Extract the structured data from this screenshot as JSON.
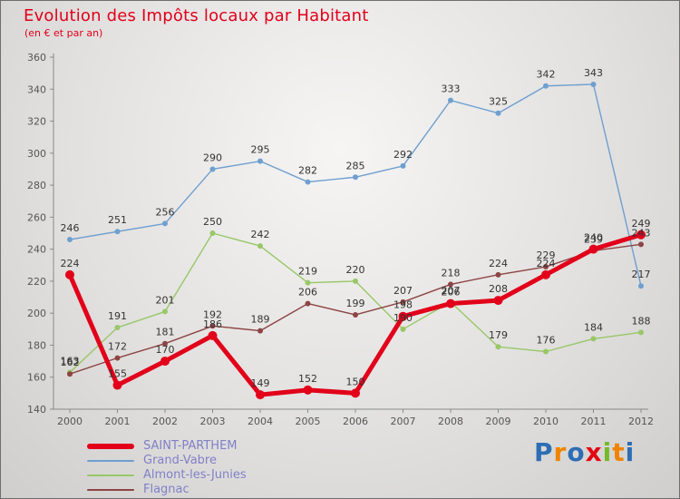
{
  "chart_data": {
    "type": "line",
    "title": "Evolution des Impôts locaux par Habitant",
    "subtitle": "(en € et par an)",
    "xlabel": "",
    "ylabel": "",
    "categories": [
      "2000",
      "2001",
      "2002",
      "2003",
      "2004",
      "2005",
      "2006",
      "2007",
      "2008",
      "2009",
      "2010",
      "2011",
      "2012"
    ],
    "ylim": [
      140,
      360
    ],
    "ytick_step": 20,
    "grid": false,
    "legend_position": "bottom-left",
    "series": [
      {
        "name": "SAINT-PARTHEM",
        "color": "#e2001a",
        "width": 5,
        "dot": 5,
        "zorder": 4,
        "values": [
          224,
          155,
          170,
          186,
          149,
          152,
          150,
          198,
          206,
          208,
          224,
          240,
          249
        ]
      },
      {
        "name": "Grand-Vabre",
        "color": "#6f9fcf",
        "width": 1.4,
        "dot": 3,
        "zorder": 2,
        "values": [
          246,
          251,
          256,
          290,
          295,
          282,
          285,
          292,
          333,
          325,
          342,
          343,
          217
        ]
      },
      {
        "name": "Almont-les-Junies",
        "color": "#99c767",
        "width": 1.4,
        "dot": 3,
        "zorder": 1,
        "values": [
          163,
          191,
          201,
          250,
          242,
          219,
          220,
          190,
          207,
          179,
          176,
          184,
          188
        ]
      },
      {
        "name": "Flagnac",
        "color": "#8e4444",
        "width": 1.4,
        "dot": 3,
        "zorder": 3,
        "values": [
          162,
          172,
          181,
          192,
          189,
          206,
          199,
          207,
          218,
          224,
          229,
          239,
          243
        ]
      }
    ]
  },
  "logo": {
    "text": "Proxiti",
    "letters": [
      {
        "ch": "P",
        "color": "#2e6db4"
      },
      {
        "ch": "r",
        "color": "#f08300"
      },
      {
        "ch": "o",
        "color": "#2e6db4"
      },
      {
        "ch": "x",
        "color": "#e30613"
      },
      {
        "ch": "i",
        "color": "#76b82a"
      },
      {
        "ch": "t",
        "color": "#f08300"
      },
      {
        "ch": "i",
        "color": "#2e6db4"
      }
    ]
  }
}
